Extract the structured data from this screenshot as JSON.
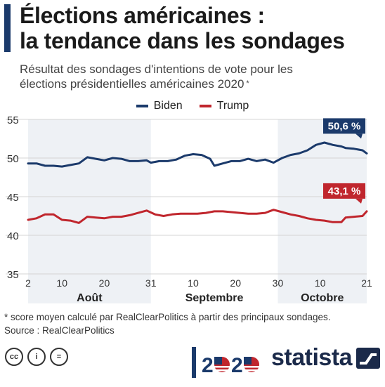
{
  "title_lines": [
    "Élections américaines :",
    "la tendance dans les sondages"
  ],
  "subtitle_lines": [
    "Résultat des sondages d'intentions de vote pour les",
    "élections présidentielles américaines 2020"
  ],
  "subtitle_mark": "*",
  "footnote": {
    "note": "* score moyen calculé par RealClearPolitics à partir des principaux sondages.",
    "source": "Source : RealClearPolitics"
  },
  "logos": {
    "statista": "statista",
    "cc": "cc",
    "by": "i",
    "nd": "="
  },
  "colors": {
    "biden": "#1b3a6b",
    "trump": "#c0262d",
    "month_band": "#eef1f5",
    "grid": "#d4d4d4"
  },
  "chart_data": {
    "type": "line",
    "title": "",
    "xlabel": "",
    "ylabel": "",
    "ylim": [
      35,
      55
    ],
    "y_ticks": [
      35,
      40,
      45,
      50,
      55
    ],
    "x_ticks": [
      {
        "day": 0,
        "label": "2"
      },
      {
        "day": 8,
        "label": "10"
      },
      {
        "day": 18,
        "label": "20"
      },
      {
        "day": 29,
        "label": "31"
      },
      {
        "day": 39,
        "label": "10"
      },
      {
        "day": 49,
        "label": "20"
      },
      {
        "day": 59,
        "label": "30"
      },
      {
        "day": 69,
        "label": "10"
      },
      {
        "day": 80,
        "label": "21"
      }
    ],
    "months": [
      {
        "label": "Août",
        "start": 0,
        "end": 29,
        "shaded": true
      },
      {
        "label": "Septembre",
        "start": 29,
        "end": 59,
        "shaded": false
      },
      {
        "label": "Octobre",
        "start": 59,
        "end": 80,
        "shaded": true
      }
    ],
    "legend_position": "top-center",
    "grid": true,
    "series": [
      {
        "name": "Biden",
        "color": "#1b3a6b",
        "end_label": "50,6 %",
        "points": [
          [
            0,
            49.3
          ],
          [
            2,
            49.3
          ],
          [
            4,
            49.0
          ],
          [
            6,
            49.0
          ],
          [
            8,
            48.9
          ],
          [
            10,
            49.1
          ],
          [
            12,
            49.3
          ],
          [
            14,
            50.1
          ],
          [
            16,
            49.9
          ],
          [
            18,
            49.7
          ],
          [
            20,
            50.0
          ],
          [
            22,
            49.9
          ],
          [
            24,
            49.6
          ],
          [
            26,
            49.6
          ],
          [
            28,
            49.7
          ],
          [
            29,
            49.4
          ],
          [
            31,
            49.6
          ],
          [
            33,
            49.6
          ],
          [
            35,
            49.8
          ],
          [
            37,
            50.3
          ],
          [
            39,
            50.5
          ],
          [
            41,
            50.4
          ],
          [
            43,
            49.9
          ],
          [
            44,
            49.0
          ],
          [
            46,
            49.3
          ],
          [
            48,
            49.6
          ],
          [
            50,
            49.6
          ],
          [
            52,
            49.9
          ],
          [
            54,
            49.6
          ],
          [
            56,
            49.8
          ],
          [
            58,
            49.4
          ],
          [
            60,
            50.0
          ],
          [
            62,
            50.4
          ],
          [
            64,
            50.6
          ],
          [
            66,
            51.0
          ],
          [
            68,
            51.7
          ],
          [
            70,
            52.0
          ],
          [
            72,
            51.7
          ],
          [
            74,
            51.5
          ],
          [
            75,
            51.3
          ],
          [
            77,
            51.2
          ],
          [
            79,
            51.0
          ],
          [
            80,
            50.6
          ]
        ]
      },
      {
        "name": "Trump",
        "color": "#c0262d",
        "end_label": "43,1 %",
        "points": [
          [
            0,
            42.0
          ],
          [
            2,
            42.2
          ],
          [
            4,
            42.7
          ],
          [
            6,
            42.7
          ],
          [
            8,
            42.0
          ],
          [
            10,
            41.9
          ],
          [
            12,
            41.6
          ],
          [
            14,
            42.4
          ],
          [
            16,
            42.3
          ],
          [
            18,
            42.2
          ],
          [
            20,
            42.4
          ],
          [
            22,
            42.4
          ],
          [
            24,
            42.6
          ],
          [
            26,
            42.9
          ],
          [
            28,
            43.2
          ],
          [
            30,
            42.7
          ],
          [
            32,
            42.5
          ],
          [
            34,
            42.7
          ],
          [
            36,
            42.8
          ],
          [
            38,
            42.8
          ],
          [
            40,
            42.8
          ],
          [
            42,
            42.9
          ],
          [
            44,
            43.1
          ],
          [
            46,
            43.1
          ],
          [
            48,
            43.0
          ],
          [
            50,
            42.9
          ],
          [
            52,
            42.8
          ],
          [
            54,
            42.8
          ],
          [
            56,
            42.9
          ],
          [
            58,
            43.3
          ],
          [
            60,
            43.0
          ],
          [
            62,
            42.7
          ],
          [
            64,
            42.5
          ],
          [
            66,
            42.2
          ],
          [
            68,
            42.0
          ],
          [
            70,
            41.9
          ],
          [
            72,
            41.7
          ],
          [
            74,
            41.7
          ],
          [
            75,
            42.3
          ],
          [
            77,
            42.4
          ],
          [
            79,
            42.5
          ],
          [
            80,
            43.1
          ]
        ]
      }
    ]
  }
}
